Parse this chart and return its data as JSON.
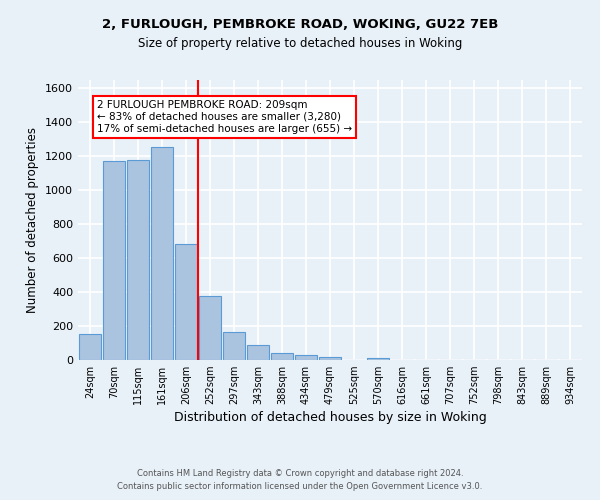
{
  "title1": "2, FURLOUGH, PEMBROKE ROAD, WOKING, GU22 7EB",
  "title2": "Size of property relative to detached houses in Woking",
  "xlabel": "Distribution of detached houses by size in Woking",
  "ylabel": "Number of detached properties",
  "footnote1": "Contains HM Land Registry data © Crown copyright and database right 2024.",
  "footnote2": "Contains public sector information licensed under the Open Government Licence v3.0.",
  "categories": [
    "24sqm",
    "70sqm",
    "115sqm",
    "161sqm",
    "206sqm",
    "252sqm",
    "297sqm",
    "343sqm",
    "388sqm",
    "434sqm",
    "479sqm",
    "525sqm",
    "570sqm",
    "616sqm",
    "661sqm",
    "707sqm",
    "752sqm",
    "798sqm",
    "843sqm",
    "889sqm",
    "934sqm"
  ],
  "values": [
    155,
    1170,
    1180,
    1255,
    685,
    375,
    165,
    88,
    40,
    30,
    18,
    0,
    12,
    0,
    0,
    0,
    0,
    0,
    0,
    0,
    0
  ],
  "bar_color": "#aac4e0",
  "bar_edge_color": "#5b9bd5",
  "vline_x": 4.5,
  "vline_color": "red",
  "annotation_text": "2 FURLOUGH PEMBROKE ROAD: 209sqm\n← 83% of detached houses are smaller (3,280)\n17% of semi-detached houses are larger (655) →",
  "annotation_box_color": "white",
  "annotation_box_edge": "red",
  "background_color": "#e8f0f8",
  "grid_color": "white",
  "ylim": [
    0,
    1650
  ],
  "yticks": [
    0,
    200,
    400,
    600,
    800,
    1000,
    1200,
    1400,
    1600
  ]
}
